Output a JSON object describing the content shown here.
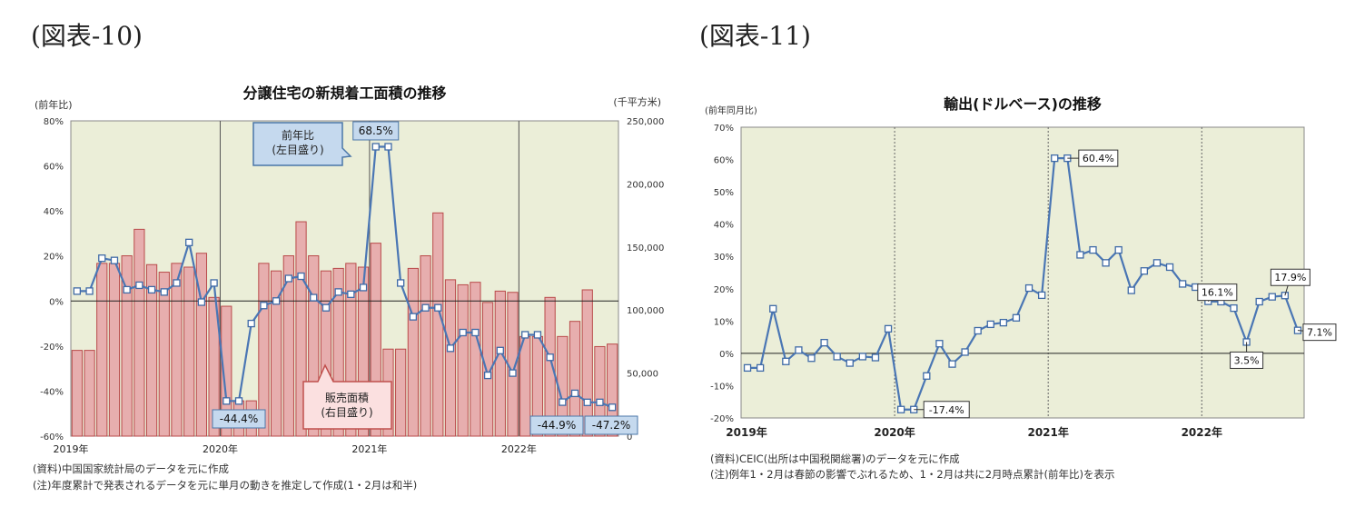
{
  "figures": [
    {
      "label": "(図表-10)"
    },
    {
      "label": "(図表-11)"
    }
  ],
  "chart_data": [
    {
      "type": "bar+line",
      "title": "分譲住宅の新規着工面積の推移",
      "ylabel_left": "(前年比)",
      "ylabel_right": "(千平方米)",
      "left_ylim": [
        -60,
        80
      ],
      "left_ticks": [
        "80%",
        "60%",
        "40%",
        "20%",
        "0%",
        "-20%",
        "-40%",
        "-60%"
      ],
      "right_ylim": [
        0,
        250000
      ],
      "right_ticks": [
        "250,000",
        "200,000",
        "150,000",
        "100,000",
        "50,000",
        "0"
      ],
      "xlabels": [
        "2019年",
        "2020年",
        "2021年",
        "2022年"
      ],
      "grid": true,
      "bars": {
        "name": "販売面積",
        "axis": "right",
        "values": [
          68000,
          68000,
          137000,
          137000,
          143000,
          164000,
          136000,
          130000,
          137000,
          134000,
          145000,
          110000,
          103000,
          28000,
          28000,
          137000,
          131000,
          143000,
          170000,
          143000,
          131000,
          133000,
          137000,
          134000,
          153000,
          69000,
          69000,
          133000,
          143000,
          177000,
          124000,
          120000,
          122000,
          106000,
          115000,
          114000,
          79000,
          79000,
          110000,
          79000,
          91000,
          116000,
          71000,
          73000
        ]
      },
      "line": {
        "name": "前年比",
        "axis": "left",
        "values": [
          4.4,
          4.4,
          19,
          18,
          5,
          7,
          5,
          4,
          8,
          26,
          -0.5,
          8,
          -44.4,
          -44.4,
          -10,
          -2,
          0,
          10,
          11,
          1.5,
          -3,
          4,
          3,
          6,
          68.5,
          68.5,
          8,
          -7,
          -3,
          -3,
          -21,
          -14,
          -14,
          -33,
          -22,
          -32,
          -15,
          -15,
          -25,
          -44.9,
          -41,
          -45,
          -45,
          -47.2
        ]
      },
      "legend_line": "前年比\n(左目盛り)",
      "legend_bar": "販売面積\n(右目盛り)",
      "annotations": [
        "68.5%",
        "-44.4%",
        "-44.9%",
        "-47.2%"
      ],
      "notes": [
        "(資料)中国国家統計局のデータを元に作成",
        "(注)年度累計で発表されるデータを元に単月の動きを推定して作成(1・2月は和半)"
      ]
    },
    {
      "type": "line",
      "title": "輸出(ドルベース)の推移",
      "ylabel": "(前年同月比)",
      "ylim": [
        -20,
        70
      ],
      "ticks": [
        "70%",
        "60%",
        "50%",
        "40%",
        "30%",
        "20%",
        "10%",
        "0%",
        "-10%",
        "-20%"
      ],
      "xlabels": [
        "2019年",
        "2020年",
        "2021年",
        "2022年"
      ],
      "grid": true,
      "series": [
        {
          "values": [
            -4.5,
            -4.5,
            13.8,
            -2.5,
            1,
            -1.5,
            3.3,
            -1,
            -3,
            -1,
            -1.3,
            7.6,
            -17.4,
            -17.4,
            -7,
            3,
            -3.3,
            0.4,
            7,
            9,
            9.5,
            11,
            20.2,
            18,
            60.4,
            60.4,
            30.5,
            32,
            28,
            32,
            19.5,
            25.5,
            28,
            26.7,
            21.5,
            20.5,
            16.1,
            16,
            14,
            3.5,
            16,
            17.5,
            17.9,
            7.1
          ]
        }
      ],
      "annotations": [
        "60.4%",
        "-17.4%",
        "16.1%",
        "17.9%",
        "3.5%",
        "7.1%"
      ],
      "notes": [
        "(資料)CEIC(出所は中国税関総署)のデータを元に作成",
        "(注)例年1・2月は春節の影響でぶれるため、1・2月は共に2月時点累計(前年比)を表示"
      ]
    }
  ]
}
